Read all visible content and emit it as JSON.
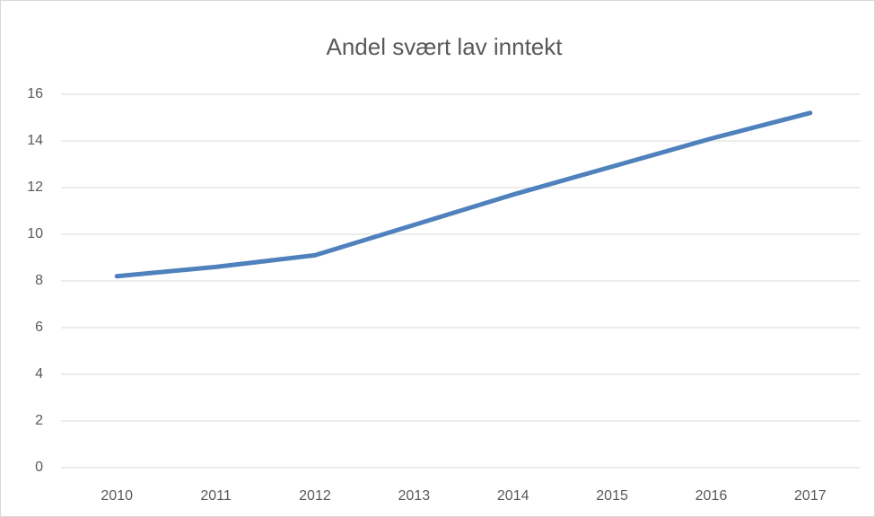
{
  "chart_data": {
    "type": "line",
    "title": "Andel svært lav inntekt",
    "categories": [
      "2010",
      "2011",
      "2012",
      "2013",
      "2014",
      "2015",
      "2016",
      "2017"
    ],
    "series": [
      {
        "name": "Andel svært lav inntekt",
        "color": "#4f81bd",
        "values": [
          8.2,
          8.6,
          9.1,
          10.4,
          11.7,
          12.9,
          14.1,
          15.2
        ]
      }
    ],
    "ylim": [
      0,
      16
    ],
    "yticks": [
      0,
      2,
      4,
      6,
      8,
      10,
      12,
      14,
      16
    ],
    "grid": true
  }
}
